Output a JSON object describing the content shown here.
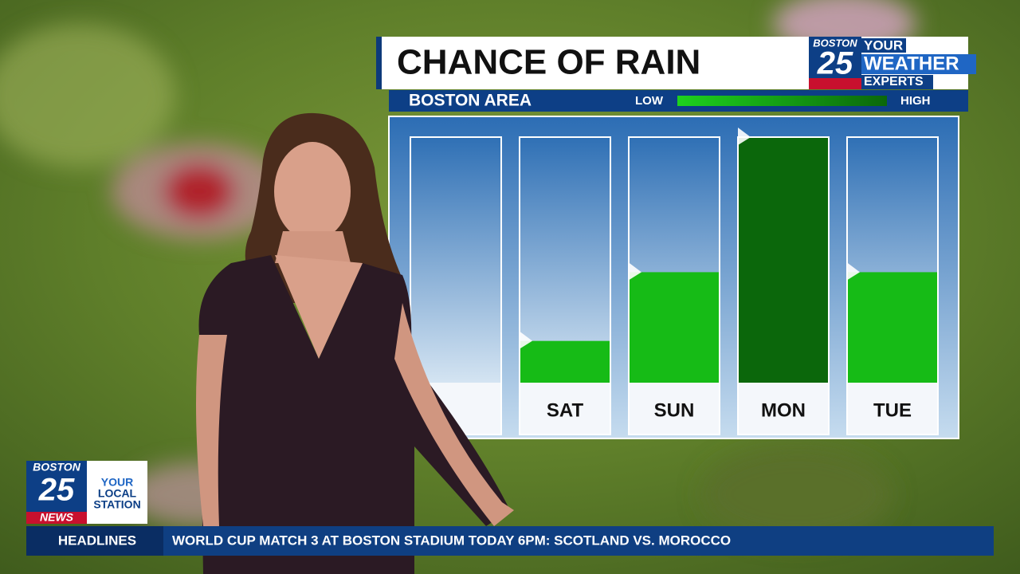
{
  "chart_data": {
    "type": "bar",
    "title": "CHANCE OF RAIN",
    "subtitle": "BOSTON AREA",
    "categories": [
      null,
      "SAT",
      "SUN",
      "MON",
      "TUE"
    ],
    "values": [
      0,
      17,
      45,
      100,
      45
    ],
    "colors": [
      "#16bb16",
      "#16bb16",
      "#16bb16",
      "#0b670b",
      "#16bb16"
    ],
    "ylim": [
      0,
      100
    ],
    "legend": {
      "low": "LOW",
      "high": "HIGH"
    }
  },
  "weather_logo": {
    "station": "BOSTON",
    "number": "25",
    "tag_lines": [
      "YOUR",
      "WEATHER",
      "EXPERTS"
    ]
  },
  "station_logo": {
    "station": "BOSTON",
    "number": "25",
    "network": "NEWS",
    "tag_lines": [
      "YOUR",
      "LOCAL",
      "STATION"
    ]
  },
  "ticker": {
    "label": "HEADLINES",
    "headline": "WORLD CUP MATCH 3 AT BOSTON STADIUM TODAY 6PM: SCOTLAND VS. MOROCCO"
  }
}
